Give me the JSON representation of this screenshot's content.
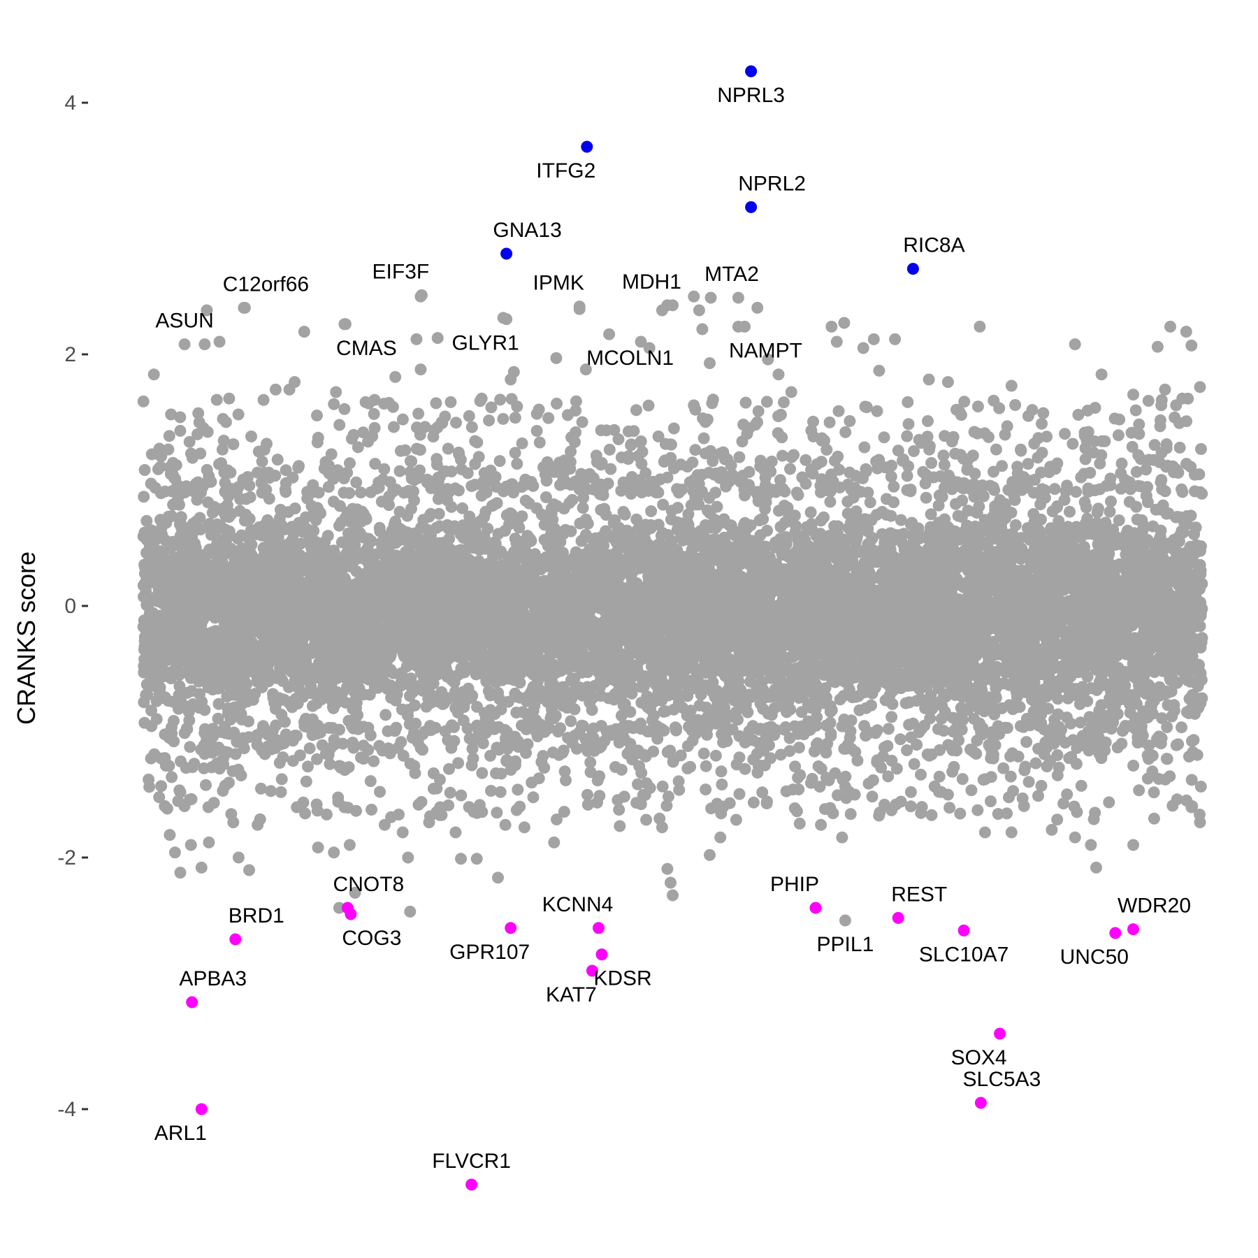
{
  "chart_data": {
    "type": "scatter",
    "title": "",
    "xlabel": "",
    "ylabel": "CRANKS score",
    "ylim": [
      -5.0,
      4.6
    ],
    "x_range": [
      0,
      1
    ],
    "yticks": [
      {
        "value": 4,
        "label": "4"
      },
      {
        "value": 2,
        "label": "2"
      },
      {
        "value": 0,
        "label": "0"
      },
      {
        "value": -2,
        "label": "-2"
      },
      {
        "value": -4,
        "label": "-4"
      }
    ],
    "grid": false,
    "legend": "none",
    "colors": {
      "background": "#ffffff",
      "background_points": "#a3a3a3",
      "positive_hits": "#0000ee",
      "negative_hits": "#ff00ff",
      "tick_text": "#4d4d4d",
      "axis_title": "#000000"
    },
    "background_points": {
      "description_count_estimate": 18000,
      "core_range": [
        -1.2,
        1.1
      ],
      "upper_outliers": [
        [
          0.01,
          1.84
        ],
        [
          0.058,
          2.08
        ],
        [
          0.072,
          2.1
        ],
        [
          0.06,
          2.35
        ],
        [
          0.095,
          2.37
        ],
        [
          0.125,
          1.72
        ],
        [
          0.138,
          1.72
        ],
        [
          0.143,
          1.78
        ],
        [
          0.152,
          2.18
        ],
        [
          0.19,
          2.24
        ],
        [
          0.182,
          1.7
        ],
        [
          0.21,
          1.62
        ],
        [
          0.238,
          1.82
        ],
        [
          0.258,
          2.12
        ],
        [
          0.262,
          2.46
        ],
        [
          0.262,
          1.88
        ],
        [
          0.278,
          2.13
        ],
        [
          0.34,
          2.29
        ],
        [
          0.347,
          1.8
        ],
        [
          0.35,
          1.86
        ],
        [
          0.39,
          1.97
        ],
        [
          0.412,
          2.36
        ],
        [
          0.418,
          1.88
        ],
        [
          0.47,
          2.1
        ],
        [
          0.478,
          2.05
        ],
        [
          0.49,
          2.35
        ],
        [
          0.495,
          2.39
        ],
        [
          0.52,
          2.46
        ],
        [
          0.525,
          2.35
        ],
        [
          0.528,
          2.2
        ],
        [
          0.535,
          1.93
        ],
        [
          0.562,
          2.22
        ],
        [
          0.562,
          2.45
        ],
        [
          0.58,
          2.37
        ],
        [
          0.59,
          1.96
        ],
        [
          0.6,
          1.84
        ],
        [
          0.612,
          1.7
        ],
        [
          0.65,
          2.22
        ],
        [
          0.655,
          2.1
        ],
        [
          0.662,
          2.25
        ],
        [
          0.68,
          2.05
        ],
        [
          0.69,
          2.12
        ],
        [
          0.695,
          1.87
        ],
        [
          0.71,
          2.12
        ],
        [
          0.722,
          1.62
        ],
        [
          0.742,
          1.8
        ],
        [
          0.76,
          1.78
        ],
        [
          0.768,
          1.56
        ],
        [
          0.79,
          2.22
        ],
        [
          0.82,
          1.75
        ],
        [
          0.88,
          2.08
        ],
        [
          0.905,
          1.84
        ],
        [
          0.935,
          1.68
        ],
        [
          0.958,
          2.06
        ],
        [
          0.965,
          1.72
        ],
        [
          0.97,
          2.22
        ],
        [
          0.985,
          2.18
        ],
        [
          0.99,
          2.07
        ],
        [
          0.998,
          1.74
        ]
      ],
      "lower_outliers": [
        [
          0.005,
          -1.38
        ],
        [
          0.015,
          -1.52
        ],
        [
          0.025,
          -1.82
        ],
        [
          0.03,
          -1.96
        ],
        [
          0.035,
          -2.12
        ],
        [
          0.045,
          -1.9
        ],
        [
          0.055,
          -2.08
        ],
        [
          0.062,
          -1.88
        ],
        [
          0.085,
          -1.72
        ],
        [
          0.09,
          -2.0
        ],
        [
          0.1,
          -2.1
        ],
        [
          0.108,
          -1.74
        ],
        [
          0.13,
          -1.48
        ],
        [
          0.145,
          -1.6
        ],
        [
          0.165,
          -1.92
        ],
        [
          0.18,
          -1.96
        ],
        [
          0.19,
          -1.6
        ],
        [
          0.195,
          -1.9
        ],
        [
          0.185,
          -2.4
        ],
        [
          0.2,
          -2.28
        ],
        [
          0.228,
          -1.74
        ],
        [
          0.245,
          -1.8
        ],
        [
          0.25,
          -2.0
        ],
        [
          0.252,
          -2.43
        ],
        [
          0.26,
          -1.58
        ],
        [
          0.27,
          -1.72
        ],
        [
          0.295,
          -1.8
        ],
        [
          0.3,
          -2.01
        ],
        [
          0.315,
          -2.01
        ],
        [
          0.335,
          -2.16
        ],
        [
          0.342,
          -1.74
        ],
        [
          0.36,
          -1.76
        ],
        [
          0.388,
          -1.88
        ],
        [
          0.42,
          -1.58
        ],
        [
          0.45,
          -1.75
        ],
        [
          0.475,
          -1.7
        ],
        [
          0.49,
          -1.76
        ],
        [
          0.495,
          -2.09
        ],
        [
          0.498,
          -2.2
        ],
        [
          0.5,
          -2.3
        ],
        [
          0.535,
          -1.98
        ],
        [
          0.545,
          -1.84
        ],
        [
          0.56,
          -1.7
        ],
        [
          0.62,
          -1.73
        ],
        [
          0.64,
          -1.74
        ],
        [
          0.66,
          -1.84
        ],
        [
          0.672,
          -1.5
        ],
        [
          0.7,
          -1.58
        ],
        [
          0.725,
          -1.48
        ],
        [
          0.76,
          -1.5
        ],
        [
          0.795,
          -1.8
        ],
        [
          0.82,
          -1.8
        ],
        [
          0.858,
          -1.78
        ],
        [
          0.88,
          -1.84
        ],
        [
          0.895,
          -1.9
        ],
        [
          0.9,
          -2.08
        ],
        [
          0.935,
          -1.9
        ],
        [
          0.99,
          -1.6
        ],
        [
          0.998,
          -1.72
        ]
      ]
    },
    "highlighted_points": [
      {
        "label": "NPRL3",
        "x": 0.574,
        "y": 4.25,
        "group": "positive",
        "label_pos": "below"
      },
      {
        "label": "ITFG2",
        "x": 0.419,
        "y": 3.65,
        "group": "positive",
        "label_pos": "below-left"
      },
      {
        "label": "NPRL2",
        "x": 0.574,
        "y": 3.17,
        "group": "positive",
        "label_pos": "above-right"
      },
      {
        "label": "GNA13",
        "x": 0.343,
        "y": 2.8,
        "group": "positive",
        "label_pos": "above-right"
      },
      {
        "label": "RIC8A",
        "x": 0.727,
        "y": 2.68,
        "group": "positive",
        "label_pos": "above-right"
      },
      {
        "label": "C12orf66",
        "x": 0.096,
        "y": 2.37,
        "group": "background",
        "label_pos": "above-right"
      },
      {
        "label": "EIF3F",
        "x": 0.263,
        "y": 2.47,
        "group": "background",
        "label_pos": "above-left"
      },
      {
        "label": "IPMK",
        "x": 0.412,
        "y": 2.38,
        "group": "background",
        "label_pos": "above-left"
      },
      {
        "label": "MDH1",
        "x": 0.5,
        "y": 2.39,
        "group": "background",
        "label_pos": "above-left"
      },
      {
        "label": "MTA2",
        "x": 0.536,
        "y": 2.45,
        "group": "background",
        "label_pos": "above-right"
      },
      {
        "label": "ASUN",
        "x": 0.039,
        "y": 2.08,
        "group": "background",
        "label_pos": "above"
      },
      {
        "label": "CMAS",
        "x": 0.191,
        "y": 2.24,
        "group": "background",
        "label_pos": "below-right"
      },
      {
        "label": "GLYR1",
        "x": 0.343,
        "y": 2.28,
        "group": "background",
        "label_pos": "below-left"
      },
      {
        "label": "MCOLN1",
        "x": 0.44,
        "y": 2.16,
        "group": "background",
        "label_pos": "below-right"
      },
      {
        "label": "NAMPT",
        "x": 0.568,
        "y": 2.22,
        "group": "background",
        "label_pos": "below-right"
      },
      {
        "label": "CNOT8",
        "x": 0.193,
        "y": -2.4,
        "group": "negative",
        "label_pos": "above-right"
      },
      {
        "label": "COG3",
        "x": 0.196,
        "y": -2.45,
        "group": "negative",
        "label_pos": "below-right"
      },
      {
        "label": "BRD1",
        "x": 0.087,
        "y": -2.65,
        "group": "negative",
        "label_pos": "above-right"
      },
      {
        "label": "APBA3",
        "x": 0.046,
        "y": -3.15,
        "group": "negative",
        "label_pos": "above-right"
      },
      {
        "label": "ARL1",
        "x": 0.055,
        "y": -4.0,
        "group": "negative",
        "label_pos": "below-left"
      },
      {
        "label": "GPR107",
        "x": 0.347,
        "y": -2.56,
        "group": "negative",
        "label_pos": "below-left"
      },
      {
        "label": "KCNN4",
        "x": 0.43,
        "y": -2.56,
        "group": "negative",
        "label_pos": "above-left"
      },
      {
        "label": "KDSR",
        "x": 0.433,
        "y": -2.77,
        "group": "negative",
        "label_pos": "below-right"
      },
      {
        "label": "KAT7",
        "x": 0.424,
        "y": -2.9,
        "group": "negative",
        "label_pos": "below-left"
      },
      {
        "label": "FLVCR1",
        "x": 0.31,
        "y": -4.6,
        "group": "negative",
        "label_pos": "above"
      },
      {
        "label": "PHIP",
        "x": 0.635,
        "y": -2.4,
        "group": "negative",
        "label_pos": "above-left"
      },
      {
        "label": "PPIL1",
        "x": 0.663,
        "y": -2.5,
        "group": "background",
        "label_pos": "below"
      },
      {
        "label": "REST",
        "x": 0.713,
        "y": -2.48,
        "group": "negative",
        "label_pos": "above-right"
      },
      {
        "label": "SLC10A7",
        "x": 0.775,
        "y": -2.58,
        "group": "negative",
        "label_pos": "below"
      },
      {
        "label": "SOX4",
        "x": 0.809,
        "y": -3.4,
        "group": "negative",
        "label_pos": "below-left"
      },
      {
        "label": "SLC5A3",
        "x": 0.791,
        "y": -3.95,
        "group": "negative",
        "label_pos": "above-right"
      },
      {
        "label": "UNC50",
        "x": 0.918,
        "y": -2.6,
        "group": "negative",
        "label_pos": "below-left"
      },
      {
        "label": "WDR20",
        "x": 0.935,
        "y": -2.57,
        "group": "negative",
        "label_pos": "above-right"
      }
    ]
  }
}
